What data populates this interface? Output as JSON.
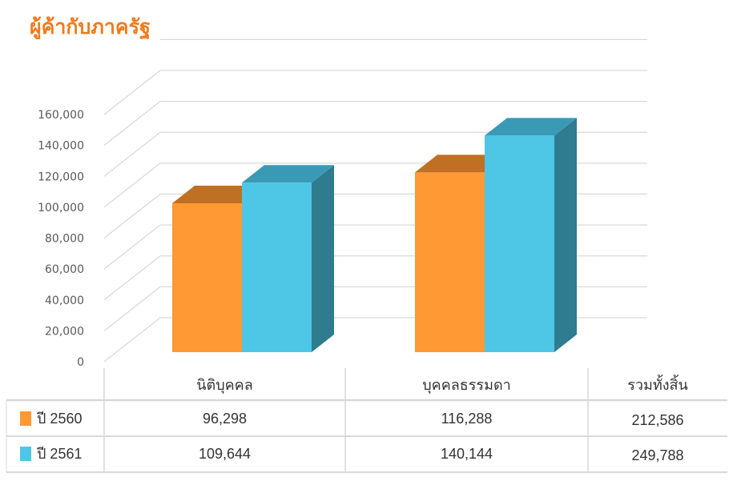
{
  "title": "ผู้ค้ากับภาครัฐ",
  "chart_data": {
    "type": "bar",
    "style": "3d-clustered-column",
    "categories": [
      "นิติบุคคล",
      "บุคคลธรรมดา"
    ],
    "series": [
      {
        "name": "ปี 2560",
        "values": [
          96298,
          116288
        ],
        "color": "#ff9933"
      },
      {
        "name": "ปี 2561",
        "values": [
          109644,
          140144
        ],
        "color": "#4ec6e6"
      }
    ],
    "ylim": [
      0,
      160000
    ],
    "yticks": [
      "0",
      "20,000",
      "40,000",
      "60,000",
      "80,000",
      "100,000",
      "120,000",
      "140,000",
      "160,000"
    ],
    "grid": true,
    "legend": "data-table"
  },
  "table": {
    "headers": [
      "นิติบุคคล",
      "บุคคลธรรมดา",
      "รวมทั้งสิ้น"
    ],
    "rows": [
      {
        "label": "ปี 2560",
        "color": "#ff9933",
        "cells": [
          "96,298",
          "116,288",
          "212,586"
        ]
      },
      {
        "label": "ปี 2561",
        "color": "#4ec6e6",
        "cells": [
          "109,644",
          "140,144",
          "249,788"
        ]
      }
    ]
  }
}
